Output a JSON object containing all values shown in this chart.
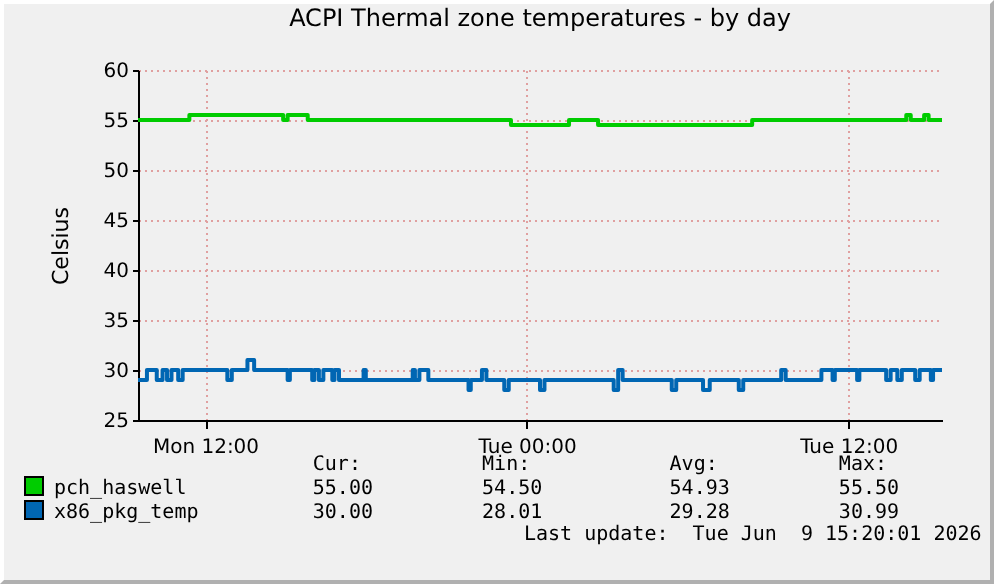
{
  "chart_data": {
    "type": "step",
    "title": "ACPI Thermal zone temperatures - by day",
    "ylabel": "Celsius",
    "xlim": [
      "2026-06-08T09:30",
      "2026-06-09T15:30"
    ],
    "xticks": [
      {
        "value": "2026-06-08T12:00",
        "label": "Mon 12:00"
      },
      {
        "value": "2026-06-09T00:00",
        "label": "Tue 00:00"
      },
      {
        "value": "2026-06-09T12:00",
        "label": "Tue 12:00"
      }
    ],
    "ylim": [
      25,
      60
    ],
    "yticks": [
      25,
      30,
      35,
      40,
      45,
      50,
      55,
      60
    ],
    "grid": true,
    "legend": "bottom",
    "series": [
      {
        "name": "pch_haswell",
        "color": "#00cc00",
        "x": [
          "2026-06-08T09:30",
          "2026-06-08T11:25",
          "2026-06-08T14:55",
          "2026-06-08T15:05",
          "2026-06-08T15:50",
          "2026-06-08T23:25",
          "2026-06-09T01:35",
          "2026-06-09T02:40",
          "2026-06-09T08:25",
          "2026-06-09T14:10",
          "2026-06-09T14:20",
          "2026-06-09T14:50",
          "2026-06-09T15:00",
          "2026-06-09T15:30"
        ],
        "values": [
          55,
          55.5,
          55,
          55.5,
          55,
          54.5,
          55,
          54.5,
          55,
          55.5,
          55,
          55.5,
          55,
          55
        ]
      },
      {
        "name": "x86_pkg_temp",
        "color": "#0066b3",
        "x": [
          "2026-06-08T09:30",
          "2026-06-08T09:50",
          "2026-06-08T10:12",
          "2026-06-08T10:25",
          "2026-06-08T10:35",
          "2026-06-08T10:45",
          "2026-06-08T11:00",
          "2026-06-08T11:10",
          "2026-06-08T12:50",
          "2026-06-08T13:00",
          "2026-06-08T13:35",
          "2026-06-08T13:50",
          "2026-06-08T15:05",
          "2026-06-08T15:10",
          "2026-06-08T16:00",
          "2026-06-08T16:05",
          "2026-06-08T16:15",
          "2026-06-08T16:25",
          "2026-06-08T16:45",
          "2026-06-08T16:50",
          "2026-06-08T17:00",
          "2026-06-08T17:55",
          "2026-06-08T18:00",
          "2026-06-08T19:45",
          "2026-06-08T19:50",
          "2026-06-08T20:00",
          "2026-06-08T20:20",
          "2026-06-08T21:50",
          "2026-06-08T21:55",
          "2026-06-08T22:20",
          "2026-06-08T22:30",
          "2026-06-08T23:10",
          "2026-06-08T23:20",
          "2026-06-09T00:30",
          "2026-06-09T00:40",
          "2026-06-09T03:15",
          "2026-06-09T03:25",
          "2026-06-09T03:35",
          "2026-06-09T05:25",
          "2026-06-09T05:35",
          "2026-06-09T06:35",
          "2026-06-09T06:50",
          "2026-06-09T07:55",
          "2026-06-09T08:05",
          "2026-06-09T09:30",
          "2026-06-09T09:40",
          "2026-06-09T11:00",
          "2026-06-09T11:25",
          "2026-06-09T11:30",
          "2026-06-09T12:20",
          "2026-06-09T12:25",
          "2026-06-09T13:25",
          "2026-06-09T13:35",
          "2026-06-09T13:50",
          "2026-06-09T14:00",
          "2026-06-09T14:30",
          "2026-06-09T14:40",
          "2026-06-09T15:05",
          "2026-06-09T15:10",
          "2026-06-09T15:30"
        ],
        "values": [
          29,
          30,
          29,
          30,
          29,
          30,
          29,
          30,
          29,
          30,
          31,
          30,
          29,
          30,
          29,
          30,
          29,
          30,
          29,
          30,
          29,
          30,
          29,
          30,
          29,
          30,
          29,
          28,
          29,
          30,
          29,
          28,
          29,
          28,
          29,
          28,
          30,
          29,
          28,
          29,
          28,
          29,
          28,
          29,
          30,
          29,
          30,
          29,
          30,
          29,
          30,
          29,
          30,
          29,
          30,
          29,
          30,
          29,
          30,
          30
        ]
      }
    ],
    "annotations": [
      "Cur:",
      "Min:",
      "Avg:",
      "Max:",
      "55.00",
      "54.50",
      "54.93",
      "55.50",
      "30.00",
      "28.01",
      "29.28",
      "30.99",
      "Last update:  Tue Jun  9 15:20:01 2026"
    ]
  }
}
